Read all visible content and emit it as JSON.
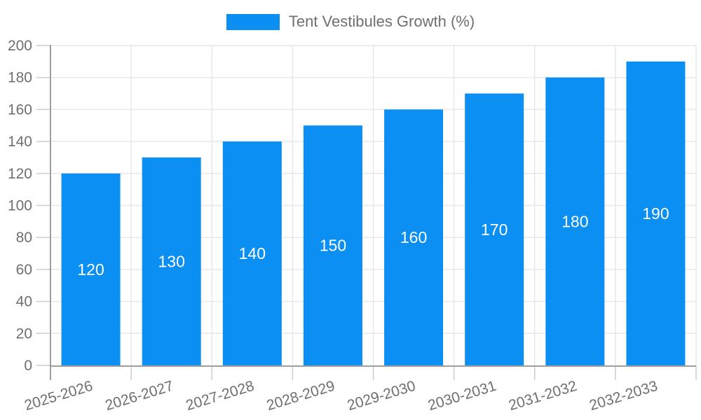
{
  "chart_data": {
    "type": "bar",
    "legend": {
      "label": "Tent Vestibules Growth (%)",
      "position": "top"
    },
    "categories": [
      "2025-2026",
      "2026-2027",
      "2027-2028",
      "2028-2029",
      "2029-2030",
      "2030-2031",
      "2031-2032",
      "2032-2033"
    ],
    "values": [
      120,
      130,
      140,
      150,
      160,
      170,
      180,
      190
    ],
    "value_labels": [
      "120",
      "130",
      "140",
      "150",
      "160",
      "170",
      "180",
      "190"
    ],
    "xlabel": "",
    "ylabel": "",
    "ylim": [
      0,
      200
    ],
    "ytick_step": 20,
    "ytick_labels": [
      "0",
      "20",
      "40",
      "60",
      "80",
      "100",
      "120",
      "140",
      "160",
      "180",
      "200"
    ],
    "grid": true,
    "legend_position": "top",
    "x_label_rotation_deg": -17,
    "colors": {
      "bar": "#0b8ff2",
      "bar_value_label": "#ffffff",
      "axis_text": "#6f6f6f",
      "gridline": "#e7e7e7",
      "tick_mark": "#cccccc",
      "axis_line": "#9e9e9e",
      "background": "#ffffff"
    }
  }
}
